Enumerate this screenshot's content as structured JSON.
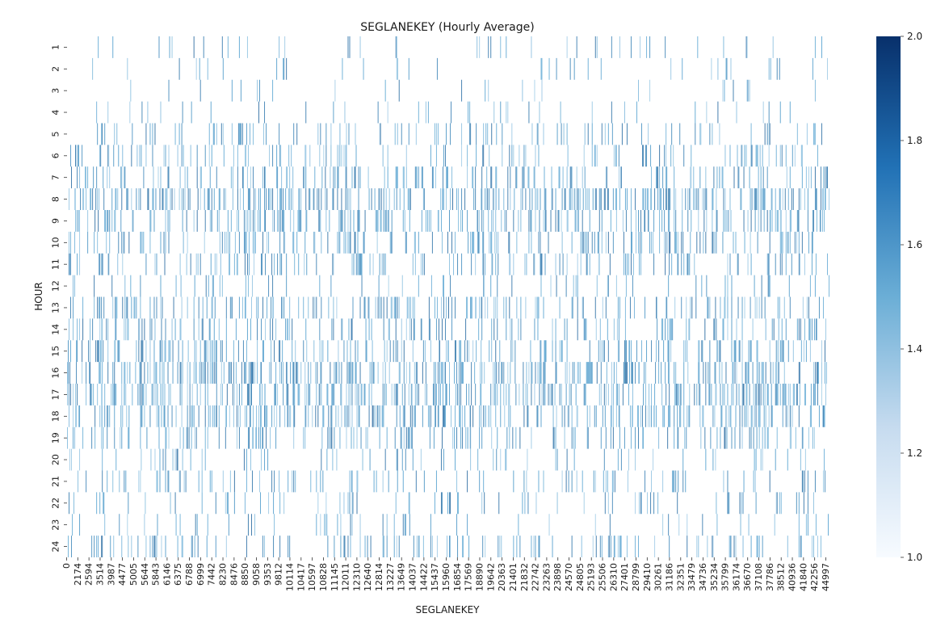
{
  "chart_data": {
    "type": "heatmap",
    "title": "SEGLANEKEY (Hourly Average)",
    "xlabel": "SEGLANEKEY",
    "ylabel": "HOUR",
    "x_tick_labels": [
      "0",
      "2174",
      "2594",
      "3514",
      "3987",
      "4477",
      "5005",
      "5644",
      "5843",
      "6146",
      "6375",
      "6788",
      "6999",
      "7442",
      "8230",
      "8476",
      "8850",
      "9058",
      "9353",
      "9812",
      "10114",
      "10417",
      "10597",
      "10828",
      "11145",
      "12011",
      "12310",
      "12640",
      "12814",
      "13227",
      "13649",
      "14037",
      "14422",
      "15437",
      "15960",
      "16854",
      "17569",
      "18890",
      "19642",
      "20363",
      "21401",
      "21832",
      "22742",
      "23263",
      "23898",
      "24570",
      "24805",
      "25193",
      "25506",
      "26310",
      "27401",
      "28799",
      "29410",
      "30261",
      "31186",
      "32351",
      "33479",
      "34736",
      "35234",
      "35799",
      "36174",
      "36670",
      "37108",
      "37786",
      "38512",
      "40936",
      "41840",
      "42256",
      "44997"
    ],
    "y_tick_labels": [
      "1",
      "2",
      "3",
      "4",
      "5",
      "6",
      "7",
      "8",
      "9",
      "10",
      "11",
      "12",
      "13",
      "14",
      "15",
      "16",
      "17",
      "18",
      "19",
      "20",
      "21",
      "22",
      "23",
      "24"
    ],
    "colorbar": {
      "min": 1.0,
      "max": 2.0,
      "ticks": [
        "1.0",
        "1.2",
        "1.4",
        "1.6",
        "1.8",
        "2.0"
      ],
      "colormap": "Blues",
      "color_low": "#f7fbff",
      "color_high": "#08306b"
    },
    "hour_density": [
      0.07,
      0.05,
      0.04,
      0.06,
      0.13,
      0.18,
      0.23,
      0.38,
      0.29,
      0.22,
      0.21,
      0.1,
      0.26,
      0.22,
      0.3,
      0.4,
      0.42,
      0.34,
      0.22,
      0.14,
      0.16,
      0.09,
      0.08,
      0.2
    ],
    "num_columns": 940,
    "cell_value_range": [
      1.0,
      2.0
    ]
  }
}
